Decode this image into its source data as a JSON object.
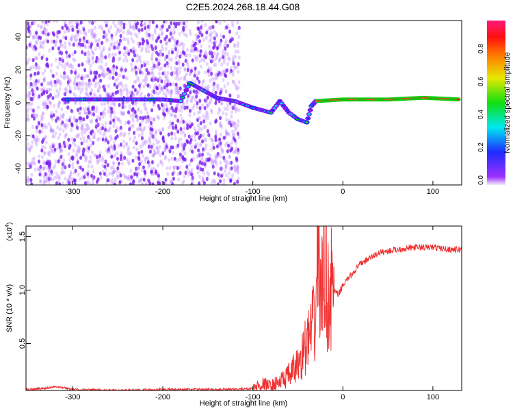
{
  "chart_data": [
    {
      "type": "heatmap",
      "title": "C2E5.2024.268.18.44.G08",
      "xlabel": "Height of straight line (km)",
      "ylabel": "Frequency (Hz)",
      "xlim": [
        -352,
        132
      ],
      "ylim": [
        -50,
        50
      ],
      "xticks": [
        -300,
        -200,
        -100,
        0,
        100
      ],
      "yticks": [
        -40,
        -20,
        0,
        20,
        40
      ],
      "colorbar": {
        "label": "Normalized spectral amplitude",
        "range": [
          0,
          1
        ],
        "ticks": [
          "0.0",
          "0.2",
          "0.4",
          "0.6",
          "0.8"
        ]
      },
      "ridge": [
        [
          -310,
          2
        ],
        [
          -260,
          2
        ],
        [
          -240,
          2
        ],
        [
          -200,
          2
        ],
        [
          -180,
          1
        ],
        [
          -170,
          12
        ],
        [
          -140,
          3
        ],
        [
          -120,
          1
        ],
        [
          -100,
          -3
        ],
        [
          -80,
          -6
        ],
        [
          -70,
          1
        ],
        [
          -60,
          -6
        ],
        [
          -50,
          -10
        ],
        [
          -40,
          -12
        ],
        [
          -35,
          -2
        ],
        [
          -30,
          1
        ],
        [
          0,
          2
        ],
        [
          50,
          2
        ],
        [
          90,
          3
        ],
        [
          130,
          2
        ]
      ],
      "noise_region": [
        -352,
        -125
      ]
    },
    {
      "type": "line",
      "xlabel": "Height of straight line (km)",
      "ylabel": "SNR (10 * v/v)",
      "multiplier": "(x10",
      "multiplier_exp": "4",
      "multiplier_close": ")",
      "xlim": [
        -352,
        132
      ],
      "ylim": [
        0.06,
        1.6
      ],
      "xticks": [
        -300,
        -200,
        -100,
        0,
        100
      ],
      "yticks": [
        "0.5",
        "1.0",
        "1.5"
      ],
      "color": "#ee3030",
      "series": [
        {
          "name": "SNR",
          "x": [
            -352,
            -330,
            -320,
            -300,
            -250,
            -200,
            -150,
            -120,
            -100,
            -90,
            -80,
            -70,
            -60,
            -50,
            -45,
            -40,
            -35,
            -30,
            -28,
            -25,
            -22,
            -20,
            -18,
            -15,
            -10,
            -5,
            0,
            10,
            20,
            30,
            40,
            60,
            80,
            100,
            120,
            132
          ],
          "y": [
            0.07,
            0.08,
            0.1,
            0.07,
            0.06,
            0.07,
            0.07,
            0.07,
            0.08,
            0.12,
            0.1,
            0.14,
            0.2,
            0.3,
            0.4,
            0.5,
            0.6,
            0.75,
            1.6,
            0.9,
            1.0,
            1.58,
            0.95,
            1.0,
            1.0,
            0.95,
            1.05,
            1.15,
            1.25,
            1.3,
            1.35,
            1.38,
            1.4,
            1.4,
            1.38,
            1.38
          ]
        }
      ]
    }
  ]
}
